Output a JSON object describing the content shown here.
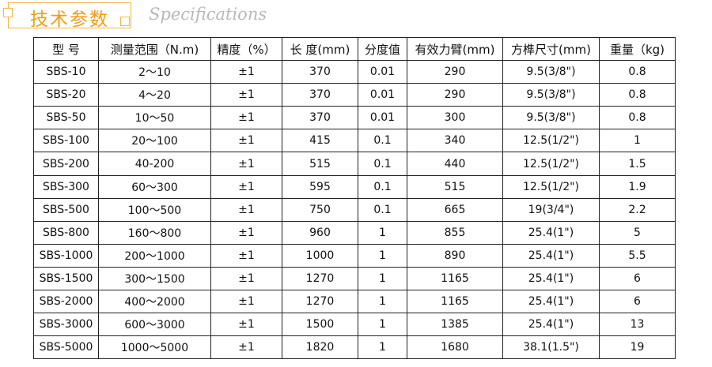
{
  "header": {
    "title_cn": "技术参数",
    "title_en": "Specifications",
    "accent": "#f39c12"
  },
  "table": {
    "headers": [
      "型 号",
      "测量范围（N.m)",
      "精度（%）",
      "长 度(mm)",
      "分度值",
      "有效力臂(mm)",
      "方榫尺寸(mm)",
      "重量（kg)"
    ],
    "rows": [
      [
        "SBS-10",
        "2～10",
        "±1",
        "370",
        "0.01",
        "290",
        "9.5(3/8\")",
        "0.8"
      ],
      [
        "SBS-20",
        "4～20",
        "±1",
        "370",
        "0.01",
        "290",
        "9.5(3/8\")",
        "0.8"
      ],
      [
        "SBS-50",
        "10～50",
        "±1",
        "370",
        "0.01",
        "300",
        "9.5(3/8\")",
        "0.8"
      ],
      [
        "SBS-100",
        "20～100",
        "±1",
        "415",
        "0.1",
        "340",
        "12.5(1/2\")",
        "1"
      ],
      [
        "SBS-200",
        "40-200",
        "±1",
        "515",
        "0.1",
        "440",
        "12.5(1/2\")",
        "1.5"
      ],
      [
        "SBS-300",
        "60～300",
        "±1",
        "595",
        "0.1",
        "515",
        "12.5(1/2\")",
        "1.9"
      ],
      [
        "SBS-500",
        "100～500",
        "±1",
        "750",
        "0.1",
        "665",
        "19(3/4\")",
        "2.2"
      ],
      [
        "SBS-800",
        "160～800",
        "±1",
        "960",
        "1",
        "855",
        "25.4(1\")",
        "5"
      ],
      [
        "SBS-1000",
        "200～1000",
        "±1",
        "1000",
        "1",
        "890",
        "25.4(1\")",
        "5.5"
      ],
      [
        "SBS-1500",
        "300～1500",
        "±1",
        "1270",
        "1",
        "1165",
        "25.4(1\")",
        "6"
      ],
      [
        "SBS-2000",
        "400～2000",
        "±1",
        "1270",
        "1",
        "1165",
        "25.4(1\")",
        "6"
      ],
      [
        "SBS-3000",
        "600～3000",
        "±1",
        "1500",
        "1",
        "1385",
        "25.4(1\")",
        "13"
      ],
      [
        "SBS-5000",
        "1000～5000",
        "±1",
        "1820",
        "1",
        "1680",
        "38.1(1.5\")",
        "19"
      ]
    ]
  }
}
